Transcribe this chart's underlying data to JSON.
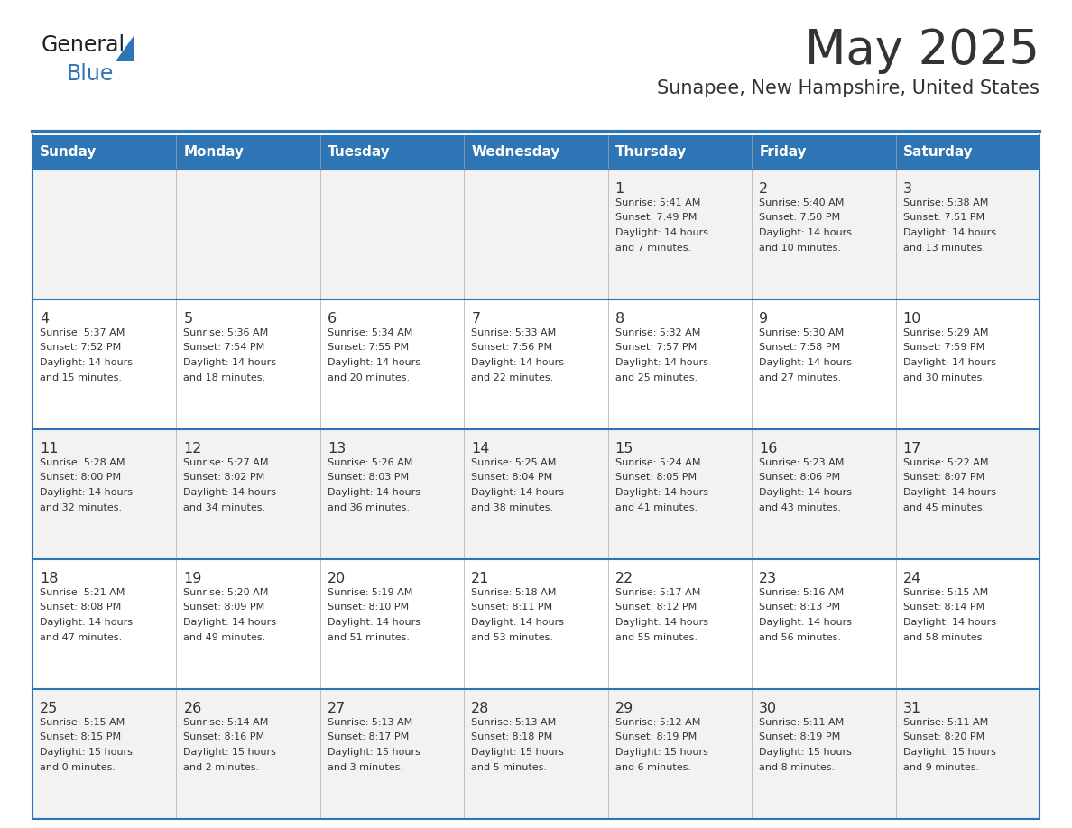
{
  "title": "May 2025",
  "subtitle": "Sunapee, New Hampshire, United States",
  "days_of_week": [
    "Sunday",
    "Monday",
    "Tuesday",
    "Wednesday",
    "Thursday",
    "Friday",
    "Saturday"
  ],
  "header_bg": "#2E75B6",
  "header_text_color": "#FFFFFF",
  "cell_bg_odd": "#F2F2F2",
  "cell_bg_even": "#FFFFFF",
  "border_color": "#2E75B6",
  "text_color": "#333333",
  "logo_dark_color": "#222222",
  "logo_blue_color": "#2E75B6",
  "calendar_data": [
    [
      null,
      null,
      null,
      null,
      {
        "day": 1,
        "sunrise": "5:41 AM",
        "sunset": "7:49 PM",
        "daylight": "14 hours and 7 minutes."
      },
      {
        "day": 2,
        "sunrise": "5:40 AM",
        "sunset": "7:50 PM",
        "daylight": "14 hours and 10 minutes."
      },
      {
        "day": 3,
        "sunrise": "5:38 AM",
        "sunset": "7:51 PM",
        "daylight": "14 hours and 13 minutes."
      }
    ],
    [
      {
        "day": 4,
        "sunrise": "5:37 AM",
        "sunset": "7:52 PM",
        "daylight": "14 hours and 15 minutes."
      },
      {
        "day": 5,
        "sunrise": "5:36 AM",
        "sunset": "7:54 PM",
        "daylight": "14 hours and 18 minutes."
      },
      {
        "day": 6,
        "sunrise": "5:34 AM",
        "sunset": "7:55 PM",
        "daylight": "14 hours and 20 minutes."
      },
      {
        "day": 7,
        "sunrise": "5:33 AM",
        "sunset": "7:56 PM",
        "daylight": "14 hours and 22 minutes."
      },
      {
        "day": 8,
        "sunrise": "5:32 AM",
        "sunset": "7:57 PM",
        "daylight": "14 hours and 25 minutes."
      },
      {
        "day": 9,
        "sunrise": "5:30 AM",
        "sunset": "7:58 PM",
        "daylight": "14 hours and 27 minutes."
      },
      {
        "day": 10,
        "sunrise": "5:29 AM",
        "sunset": "7:59 PM",
        "daylight": "14 hours and 30 minutes."
      }
    ],
    [
      {
        "day": 11,
        "sunrise": "5:28 AM",
        "sunset": "8:00 PM",
        "daylight": "14 hours and 32 minutes."
      },
      {
        "day": 12,
        "sunrise": "5:27 AM",
        "sunset": "8:02 PM",
        "daylight": "14 hours and 34 minutes."
      },
      {
        "day": 13,
        "sunrise": "5:26 AM",
        "sunset": "8:03 PM",
        "daylight": "14 hours and 36 minutes."
      },
      {
        "day": 14,
        "sunrise": "5:25 AM",
        "sunset": "8:04 PM",
        "daylight": "14 hours and 38 minutes."
      },
      {
        "day": 15,
        "sunrise": "5:24 AM",
        "sunset": "8:05 PM",
        "daylight": "14 hours and 41 minutes."
      },
      {
        "day": 16,
        "sunrise": "5:23 AM",
        "sunset": "8:06 PM",
        "daylight": "14 hours and 43 minutes."
      },
      {
        "day": 17,
        "sunrise": "5:22 AM",
        "sunset": "8:07 PM",
        "daylight": "14 hours and 45 minutes."
      }
    ],
    [
      {
        "day": 18,
        "sunrise": "5:21 AM",
        "sunset": "8:08 PM",
        "daylight": "14 hours and 47 minutes."
      },
      {
        "day": 19,
        "sunrise": "5:20 AM",
        "sunset": "8:09 PM",
        "daylight": "14 hours and 49 minutes."
      },
      {
        "day": 20,
        "sunrise": "5:19 AM",
        "sunset": "8:10 PM",
        "daylight": "14 hours and 51 minutes."
      },
      {
        "day": 21,
        "sunrise": "5:18 AM",
        "sunset": "8:11 PM",
        "daylight": "14 hours and 53 minutes."
      },
      {
        "day": 22,
        "sunrise": "5:17 AM",
        "sunset": "8:12 PM",
        "daylight": "14 hours and 55 minutes."
      },
      {
        "day": 23,
        "sunrise": "5:16 AM",
        "sunset": "8:13 PM",
        "daylight": "14 hours and 56 minutes."
      },
      {
        "day": 24,
        "sunrise": "5:15 AM",
        "sunset": "8:14 PM",
        "daylight": "14 hours and 58 minutes."
      }
    ],
    [
      {
        "day": 25,
        "sunrise": "5:15 AM",
        "sunset": "8:15 PM",
        "daylight": "15 hours and 0 minutes."
      },
      {
        "day": 26,
        "sunrise": "5:14 AM",
        "sunset": "8:16 PM",
        "daylight": "15 hours and 2 minutes."
      },
      {
        "day": 27,
        "sunrise": "5:13 AM",
        "sunset": "8:17 PM",
        "daylight": "15 hours and 3 minutes."
      },
      {
        "day": 28,
        "sunrise": "5:13 AM",
        "sunset": "8:18 PM",
        "daylight": "15 hours and 5 minutes."
      },
      {
        "day": 29,
        "sunrise": "5:12 AM",
        "sunset": "8:19 PM",
        "daylight": "15 hours and 6 minutes."
      },
      {
        "day": 30,
        "sunrise": "5:11 AM",
        "sunset": "8:19 PM",
        "daylight": "15 hours and 8 minutes."
      },
      {
        "day": 31,
        "sunrise": "5:11 AM",
        "sunset": "8:20 PM",
        "daylight": "15 hours and 9 minutes."
      }
    ]
  ]
}
